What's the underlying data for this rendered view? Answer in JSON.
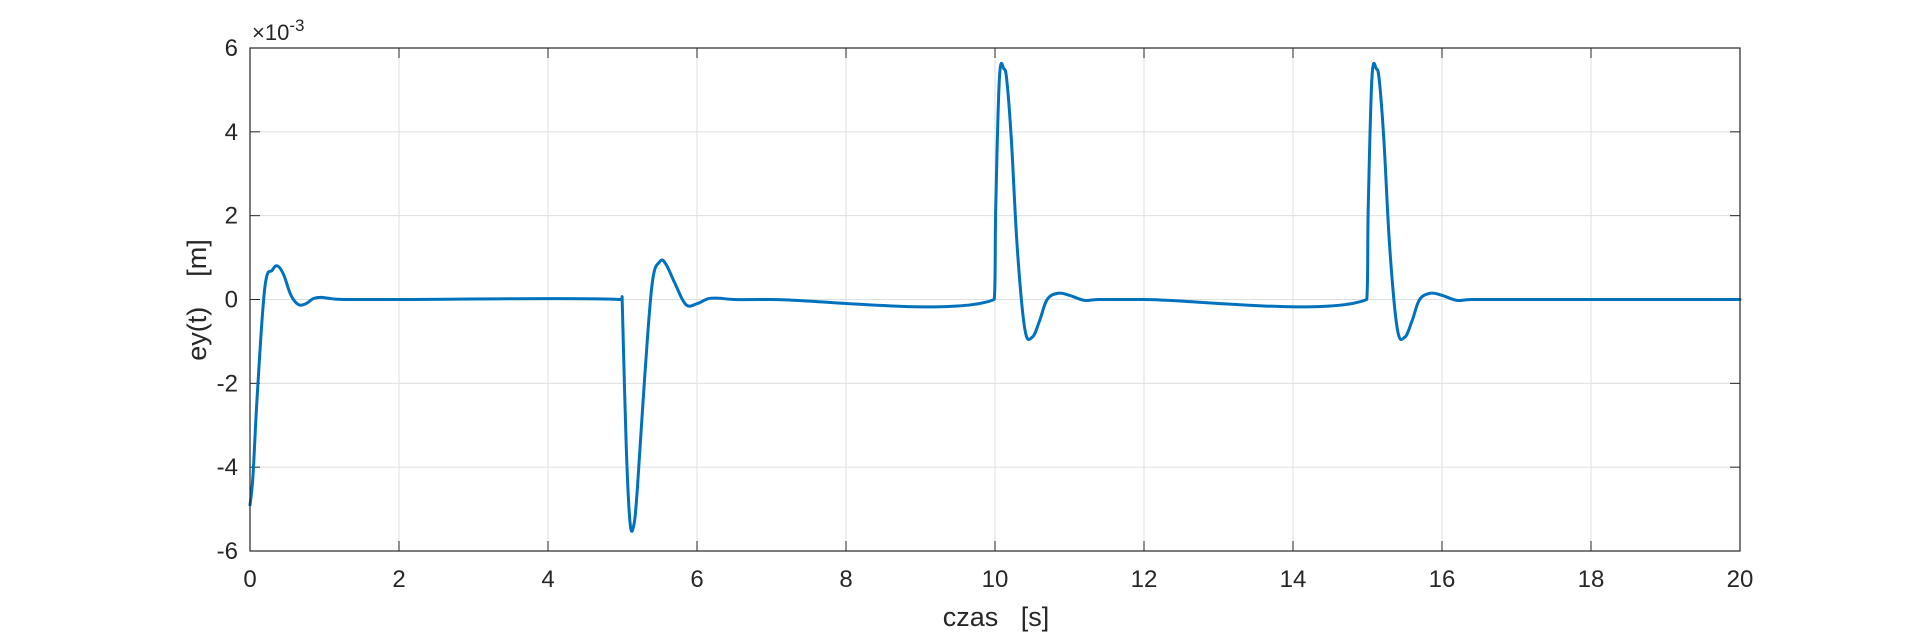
{
  "chart_data": {
    "type": "line",
    "title": "",
    "xlabel": "czas   [s]",
    "ylabel": "ey(t)    [m]",
    "y_exponent_label": "×10",
    "y_exponent_power": "-3",
    "xlim": [
      0,
      20
    ],
    "ylim": [
      -0.006,
      0.006
    ],
    "x_ticks": [
      0,
      2,
      4,
      6,
      8,
      10,
      12,
      14,
      16,
      18,
      20
    ],
    "y_ticks": [
      -0.006,
      -0.004,
      -0.002,
      0,
      0.002,
      0.004,
      0.006
    ],
    "x_tick_labels": [
      "0",
      "2",
      "4",
      "6",
      "8",
      "10",
      "12",
      "14",
      "16",
      "18",
      "20"
    ],
    "y_tick_labels": [
      "-6",
      "-4",
      "-2",
      "0",
      "2",
      "4",
      "6"
    ],
    "grid": true,
    "line_color": "#0072bd",
    "series": [
      {
        "x": [
          0,
          0.04,
          0.1,
          0.2,
          0.3,
          0.37,
          0.45,
          0.55,
          0.65,
          0.75,
          0.85,
          0.95,
          1.05,
          1.15,
          1.3,
          1.5,
          2,
          4.99,
          5.0,
          5.05,
          5.1,
          5.15,
          5.2,
          5.3,
          5.4,
          5.5,
          5.58,
          5.7,
          5.85,
          6.0,
          6.15,
          6.3,
          6.5,
          7,
          9.99,
          10.01,
          10.06,
          10.12,
          10.16,
          10.22,
          10.3,
          10.4,
          10.5,
          10.6,
          10.7,
          10.85,
          11.0,
          11.2,
          11.4,
          12,
          14.99,
          15.01,
          15.06,
          15.12,
          15.16,
          15.22,
          15.3,
          15.4,
          15.5,
          15.6,
          15.7,
          15.85,
          16.0,
          16.2,
          16.4,
          17,
          20
        ],
        "y": [
          -0.0049,
          -0.0042,
          -0.0022,
          0.0003,
          0.0007,
          0.0008,
          0.0006,
          0.0001,
          -0.00012,
          -0.0001,
          2e-05,
          5e-05,
          3e-05,
          1e-05,
          0.0,
          0.0,
          0.0,
          0.0,
          -0.0003,
          -0.0035,
          -0.0053,
          -0.0054,
          -0.0045,
          -0.0018,
          0.0004,
          0.0009,
          0.00085,
          0.0004,
          -0.00012,
          -0.0001,
          2e-05,
          3e-05,
          0.0,
          0.0,
          0.0,
          0.0022,
          0.0053,
          0.0055,
          0.0052,
          0.0038,
          0.0012,
          -0.0007,
          -0.0009,
          -0.0005,
          0.0,
          0.00015,
          0.0001,
          -2e-05,
          0.0,
          0.0,
          0.0,
          0.0022,
          0.0053,
          0.0055,
          0.0052,
          0.0038,
          0.0012,
          -0.0007,
          -0.0009,
          -0.0005,
          0.0,
          0.00015,
          0.0001,
          -2e-05,
          0.0,
          0.0,
          0.0
        ]
      }
    ]
  }
}
